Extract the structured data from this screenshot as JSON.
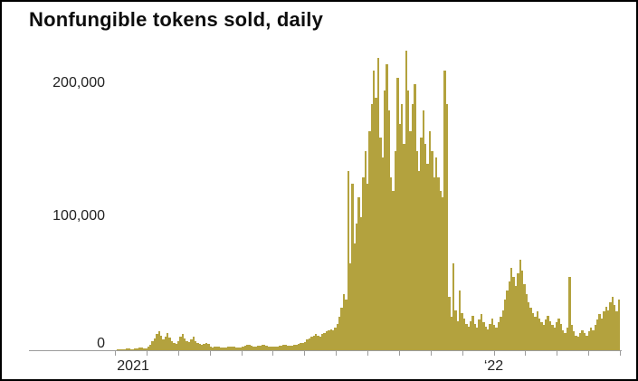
{
  "chart_data": {
    "type": "bar",
    "title": "Nonfungible tokens sold, daily",
    "xlabel": "",
    "ylabel": "",
    "x_range": "Jan 2021 to mid-April 2022, daily",
    "ylim": [
      0,
      230000
    ],
    "grid": false,
    "legend": "none",
    "bar_color": "#b3a23e",
    "axis_color": "#9c9c9c",
    "ytick_labels": [
      "0",
      "100,000",
      "200,000"
    ],
    "xtick_labels": [
      {
        "label": "2021",
        "pos": 0.036
      },
      {
        "label": "‘22",
        "pos": 0.75
      }
    ],
    "month_tick_count": 17,
    "values_note": "approximate NFTs sold per ~2-day interval read from chart",
    "values": [
      300,
      500,
      800,
      600,
      1000,
      1400,
      1100,
      900,
      700,
      1200,
      1600,
      2000,
      1800,
      1500,
      1300,
      2500,
      4000,
      6500,
      9000,
      12000,
      14000,
      11000,
      8500,
      10000,
      13000,
      9500,
      7000,
      5500,
      4500,
      7000,
      10000,
      12000,
      9000,
      7000,
      6000,
      8000,
      10000,
      7000,
      5500,
      4500,
      4000,
      5000,
      5500,
      4500,
      2500,
      2200,
      3000,
      2800,
      2500,
      2300,
      2100,
      2000,
      2600,
      3000,
      2800,
      2400,
      2200,
      2000,
      1900,
      3000,
      3500,
      4000,
      3800,
      3400,
      3000,
      2800,
      3200,
      3600,
      4000,
      3800,
      3400,
      3000,
      2800,
      2600,
      2500,
      2800,
      3200,
      3600,
      4000,
      3800,
      3500,
      3300,
      3600,
      4000,
      4400,
      4800,
      5200,
      5600,
      6000,
      8000,
      9000,
      10000,
      11000,
      12000,
      11000,
      10000,
      12000,
      13000,
      14000,
      15000,
      16000,
      15000,
      17000,
      20000,
      25000,
      32000,
      42000,
      38000,
      135000,
      65000,
      125000,
      80000,
      95000,
      115000,
      100000,
      130000,
      150000,
      125000,
      165000,
      185000,
      210000,
      190000,
      220000,
      160000,
      145000,
      195000,
      215000,
      180000,
      130000,
      120000,
      150000,
      205000,
      170000,
      185000,
      155000,
      225000,
      195000,
      165000,
      185000,
      200000,
      150000,
      135000,
      160000,
      180000,
      155000,
      140000,
      165000,
      150000,
      130000,
      145000,
      130000,
      120000,
      115000,
      210000,
      185000,
      40000,
      25000,
      65000,
      30000,
      22000,
      45000,
      28000,
      24000,
      20000,
      18000,
      22000,
      26000,
      20000,
      17000,
      23000,
      27000,
      21000,
      18000,
      16000,
      20000,
      24000,
      19000,
      17000,
      21000,
      25000,
      30000,
      38000,
      45000,
      52000,
      62000,
      55000,
      48000,
      58000,
      68000,
      60000,
      50000,
      42000,
      36000,
      32000,
      28000,
      25000,
      29000,
      24000,
      21000,
      19000,
      23000,
      26000,
      22000,
      19000,
      17000,
      21000,
      24000,
      20000,
      15000,
      13000,
      17000,
      55000,
      19000,
      14000,
      11000,
      10000,
      13000,
      15000,
      13000,
      11000,
      14000,
      17000,
      15000,
      19000,
      23000,
      27000,
      24000,
      29000,
      33000,
      30000,
      36000,
      40000,
      34000,
      29000,
      38000
    ]
  }
}
